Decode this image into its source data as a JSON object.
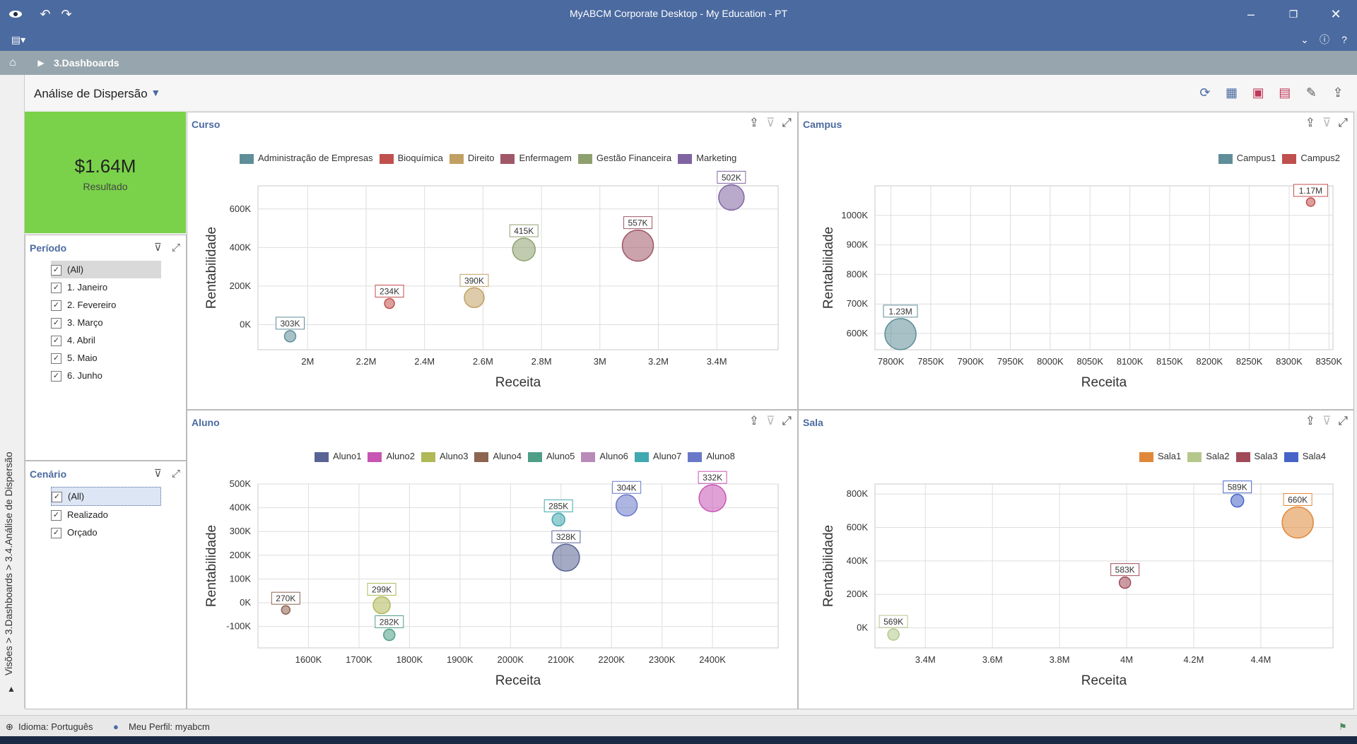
{
  "window": {
    "title": "MyABCM Corporate Desktop - My Education - PT"
  },
  "breadcrumb": {
    "item": "3.Dashboards"
  },
  "side_path": "Visões > 3.Dashboards > 3.4.Análise de Dispersão",
  "dashboard": {
    "title": "Análise de Dispersão"
  },
  "kpi": {
    "value": "$1.64M",
    "label": "Resultado"
  },
  "filters": {
    "periodo": {
      "title": "Período",
      "items": [
        "(All)",
        "1. Janeiro",
        "2. Fevereiro",
        "3. Março",
        "4. Abril",
        "5. Maio",
        "6. Junho"
      ]
    },
    "cenario": {
      "title": "Cenário",
      "items": [
        "(All)",
        "Realizado",
        "Orçado"
      ]
    }
  },
  "status": {
    "language": "Idioma: Português",
    "profile": "Meu Perfil: myabcm"
  },
  "icons": {
    "app": "eye-logo-icon",
    "undo": "undo-icon",
    "redo": "redo-icon",
    "minimize": "minimize-icon",
    "restore": "restore-icon",
    "close": "close-icon",
    "home": "home-icon",
    "globe": "globe-icon",
    "user": "user-icon",
    "filter": "filter-icon"
  },
  "chart_data": [
    {
      "panel": "Curso",
      "type": "scatter",
      "xlabel": "Receita",
      "ylabel": "Rentabilidade",
      "xlim": [
        1830000,
        3610000
      ],
      "ylim": [
        -130000,
        720000
      ],
      "xticks": [
        2000000,
        2200000,
        2400000,
        2600000,
        2800000,
        3000000,
        3200000,
        3400000
      ],
      "xticklabels": [
        "2M",
        "2.2M",
        "2.4M",
        "2.6M",
        "2.8M",
        "3M",
        "3.2M",
        "3.4M"
      ],
      "yticks": [
        0,
        200000,
        400000,
        600000
      ],
      "yticklabels": [
        "0K",
        "200K",
        "400K",
        "600K"
      ],
      "series": [
        {
          "name": "Administração de Empresas",
          "color": "#5f8e99",
          "points": [
            {
              "x": 1940000,
              "y": -60000,
              "label": "303K"
            }
          ]
        },
        {
          "name": "Bioquímica",
          "color": "#c0504d",
          "points": [
            {
              "x": 2280000,
              "y": 110000,
              "label": "234K"
            }
          ]
        },
        {
          "name": "Direito",
          "color": "#c1a063",
          "points": [
            {
              "x": 2570000,
              "y": 140000,
              "label": "390K"
            }
          ]
        },
        {
          "name": "Enfermagem",
          "color": "#a05868",
          "points": [
            {
              "x": 3130000,
              "y": 410000,
              "label": "557K"
            }
          ]
        },
        {
          "name": "Gestão Financeira",
          "color": "#8ea06e",
          "points": [
            {
              "x": 2740000,
              "y": 390000,
              "label": "415K"
            }
          ]
        },
        {
          "name": "Marketing",
          "color": "#8064a2",
          "points": [
            {
              "x": 3450000,
              "y": 660000,
              "label": "502K"
            }
          ]
        }
      ]
    },
    {
      "panel": "Campus",
      "type": "scatter",
      "xlabel": "Receita",
      "ylabel": "Rentabilidade",
      "xlim": [
        7780000,
        8355000
      ],
      "ylim": [
        545000,
        1100000
      ],
      "xticks": [
        7800000,
        7850000,
        7900000,
        7950000,
        8000000,
        8050000,
        8100000,
        8150000,
        8200000,
        8250000,
        8300000,
        8350000
      ],
      "xticklabels": [
        "7800K",
        "7850K",
        "7900K",
        "7950K",
        "8000K",
        "8050K",
        "8100K",
        "8150K",
        "8200K",
        "8250K",
        "8300K",
        "8350K"
      ],
      "yticks": [
        600000,
        700000,
        800000,
        900000,
        1000000
      ],
      "yticklabels": [
        "600K",
        "700K",
        "800K",
        "900K",
        "1000K"
      ],
      "series": [
        {
          "name": "Campus1",
          "color": "#5f8e99",
          "points": [
            {
              "x": 7812000,
              "y": 598000,
              "label": "1.23M"
            }
          ]
        },
        {
          "name": "Campus2",
          "color": "#c0504d",
          "points": [
            {
              "x": 8327000,
              "y": 1045000,
              "label": "1.17M"
            }
          ]
        }
      ]
    },
    {
      "panel": "Aluno",
      "type": "scatter",
      "xlabel": "Receita",
      "ylabel": "Rentabilidade",
      "xlim": [
        1500000,
        2530000
      ],
      "ylim": [
        -190000,
        500000
      ],
      "xticks": [
        1600000,
        1700000,
        1800000,
        1900000,
        2000000,
        2100000,
        2200000,
        2300000,
        2400000
      ],
      "xticklabels": [
        "1600K",
        "1700K",
        "1800K",
        "1900K",
        "2000K",
        "2100K",
        "2200K",
        "2300K",
        "2400K"
      ],
      "yticks": [
        -100000,
        0,
        100000,
        200000,
        300000,
        400000,
        500000
      ],
      "yticklabels": [
        "-100K",
        "0K",
        "100K",
        "200K",
        "300K",
        "400K",
        "500K"
      ],
      "series": [
        {
          "name": "Aluno1",
          "color": "#5a6494",
          "points": [
            {
              "x": 2110000,
              "y": 190000,
              "label": "328K"
            }
          ]
        },
        {
          "name": "Aluno2",
          "color": "#c755b4",
          "points": [
            {
              "x": 2400000,
              "y": 440000,
              "label": "332K"
            }
          ]
        },
        {
          "name": "Aluno3",
          "color": "#b0b858",
          "points": [
            {
              "x": 1745000,
              "y": -10000,
              "label": "299K"
            }
          ]
        },
        {
          "name": "Aluno4",
          "color": "#8c6450",
          "points": [
            {
              "x": 1555000,
              "y": -30000,
              "label": "270K"
            }
          ]
        },
        {
          "name": "Aluno5",
          "color": "#4f9e86",
          "points": [
            {
              "x": 1760000,
              "y": -135000,
              "label": "282K"
            }
          ]
        },
        {
          "name": "Aluno6",
          "color": "#b98ab8",
          "points": []
        },
        {
          "name": "Aluno7",
          "color": "#3fa8b0",
          "points": [
            {
              "x": 2095000,
              "y": 350000,
              "label": "285K"
            }
          ]
        },
        {
          "name": "Aluno8",
          "color": "#6a78c8",
          "points": [
            {
              "x": 2230000,
              "y": 410000,
              "label": "304K"
            }
          ]
        }
      ]
    },
    {
      "panel": "Sala",
      "type": "scatter",
      "xlabel": "Receita",
      "ylabel": "Rentabilidade",
      "xlim": [
        3250000,
        4615000
      ],
      "ylim": [
        -120000,
        860000
      ],
      "xticks": [
        3400000,
        3600000,
        3800000,
        4000000,
        4200000,
        4400000
      ],
      "xticklabels": [
        "3.4M",
        "3.6M",
        "3.8M",
        "4M",
        "4.2M",
        "4.4M"
      ],
      "yticks": [
        0,
        200000,
        400000,
        600000,
        800000
      ],
      "yticklabels": [
        "0K",
        "200K",
        "400K",
        "600K",
        "800K"
      ],
      "series": [
        {
          "name": "Sala1",
          "color": "#e0883a",
          "points": [
            {
              "x": 4510000,
              "y": 630000,
              "label": "660K"
            }
          ]
        },
        {
          "name": "Sala2",
          "color": "#b4c88c",
          "points": [
            {
              "x": 3305000,
              "y": -40000,
              "label": "569K"
            }
          ]
        },
        {
          "name": "Sala3",
          "color": "#a04a58",
          "points": [
            {
              "x": 3995000,
              "y": 270000,
              "label": "583K"
            }
          ]
        },
        {
          "name": "Sala4",
          "color": "#4664c8",
          "points": [
            {
              "x": 4330000,
              "y": 760000,
              "label": "589K"
            }
          ]
        }
      ]
    }
  ]
}
